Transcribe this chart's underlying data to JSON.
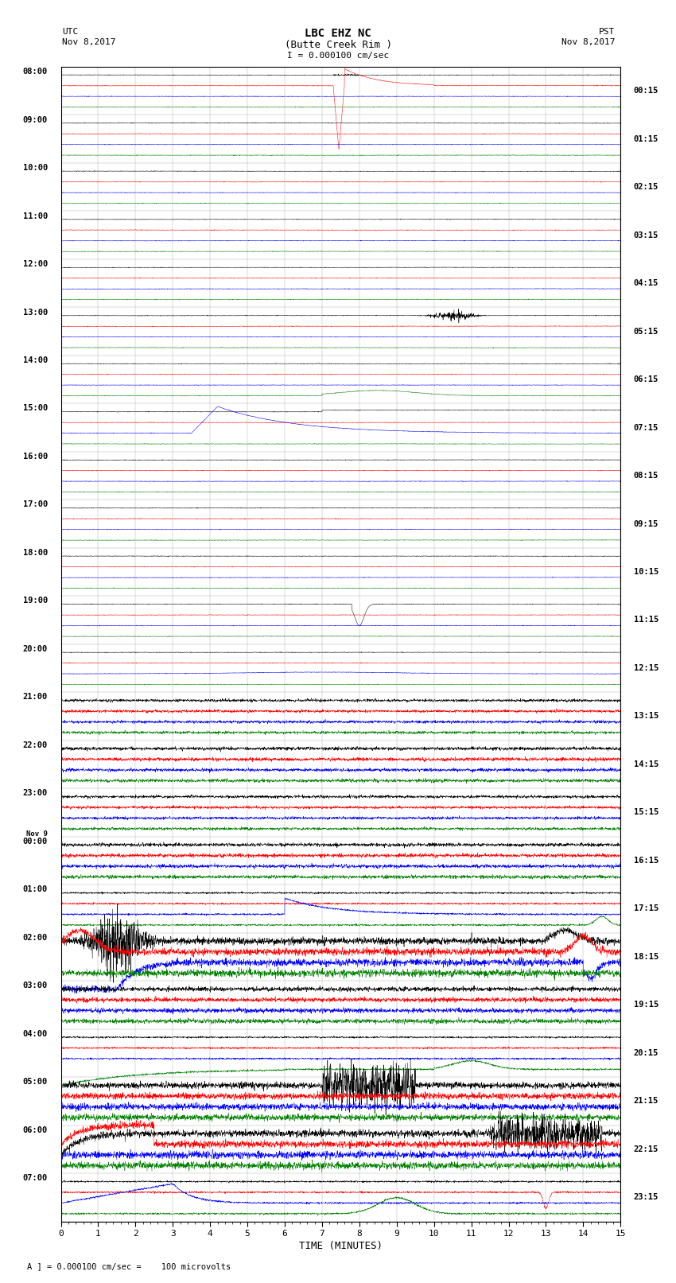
{
  "title_line1": "LBC EHZ NC",
  "title_line2": "(Butte Creek Rim )",
  "scale_text": "I = 0.000100 cm/sec",
  "utc_label": "UTC",
  "utc_date": "Nov 8,2017",
  "pst_label": "PST",
  "pst_date": "Nov 8,2017",
  "xlabel": "TIME (MINUTES)",
  "footnote": "A ] = 0.000100 cm/sec =    100 microvolts",
  "xlim": [
    0,
    15
  ],
  "bg_color": "#ffffff",
  "trace_colors": [
    "black",
    "red",
    "blue",
    "green"
  ],
  "left_labels_utc": [
    "08:00",
    "09:00",
    "10:00",
    "11:00",
    "12:00",
    "13:00",
    "14:00",
    "15:00",
    "16:00",
    "17:00",
    "18:00",
    "19:00",
    "20:00",
    "21:00",
    "22:00",
    "23:00",
    "00:00",
    "01:00",
    "02:00",
    "03:00",
    "04:00",
    "05:00",
    "06:00",
    "07:00"
  ],
  "nov9_row": 16,
  "right_labels_pst": [
    "00:15",
    "01:15",
    "02:15",
    "03:15",
    "04:15",
    "05:15",
    "06:15",
    "07:15",
    "08:15",
    "09:15",
    "10:15",
    "11:15",
    "12:15",
    "13:15",
    "14:15",
    "15:15",
    "16:15",
    "17:15",
    "18:15",
    "19:15",
    "20:15",
    "21:15",
    "22:15",
    "23:15"
  ]
}
